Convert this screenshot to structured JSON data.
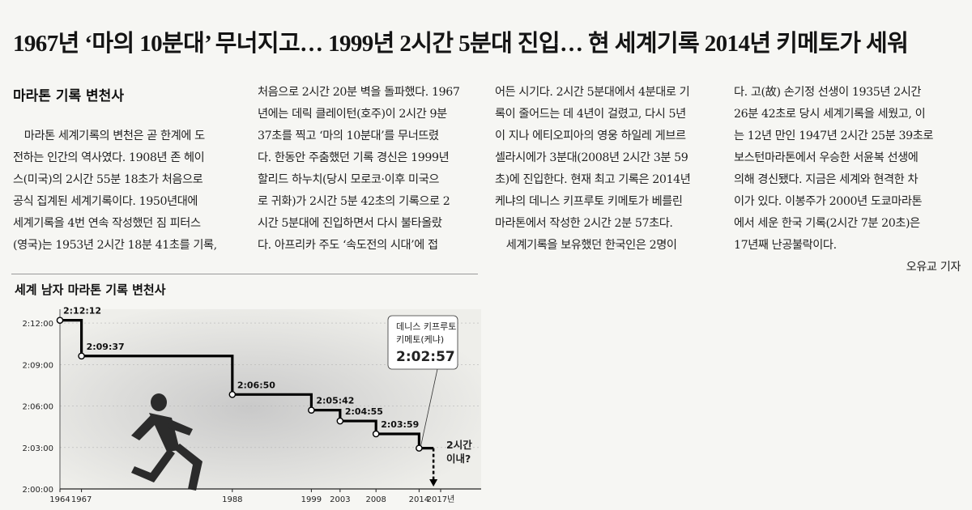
{
  "headline": "1967년 ‘마의 10분대’ 무너지고… 1999년 2시간 5분대 진입… 현 세계기록 2014년 키메토가 세워",
  "section_title": "마라톤 기록 변천사",
  "columns": [
    [
      "　마라톤 세계기록의 변천은 곧 한계에 도",
      "전하는 인간의 역사였다. 1908년 존 헤이",
      "스(미국)의 2시간 55분 18초가 처음으로",
      "공식 집계된 세계기록이다. 1950년대에",
      "세계기록을 4번 연속 작성했던 짐 피터스",
      "(영국)는 1953년 2시간 18분 41초를 기록,"
    ],
    [
      "처음으로 2시간 20분 벽을 돌파했다. 1967",
      "년에는 데릭 클레이턴(호주)이 2시간 9분",
      "37초를 찍고 ‘마의 10분대’를 무너뜨렸",
      "다. 한동안 주춤했던 기록 경신은 1999년",
      "할리드 하누치(당시 모로코·이후 미국으",
      "로 귀화)가 2시간 5분 42초의 기록으로 2",
      "시간 5분대에 진입하면서 다시 불타올랐",
      "다. 아프리카 주도 ‘속도전의 시대’에 접"
    ],
    [
      "어든 시기다. 2시간 5분대에서 4분대로 기",
      "록이 줄어드는 데 4년이 걸렸고, 다시 5년",
      "이 지나 에티오피아의 영웅 하일레 게브르",
      "셀라시에가 3분대(2008년 2시간 3분 59",
      "초)에 진입한다. 현재 최고 기록은 2014년",
      "케냐의 데니스 키프루토 키메토가 베를린",
      "마라톤에서 작성한 2시간 2분 57초다.",
      "　세계기록을 보유했던 한국인은 2명이"
    ],
    [
      "다. 고(故) 손기정 선생이 1935년 2시간",
      "26분 42초로 당시 세계기록을 세웠고, 이",
      "는 12년 만인 1947년 2시간 25분 39초로",
      "보스턴마라톤에서 우승한 서윤복 선생에",
      "의해 경신됐다. 지금은 세계와 현격한 차",
      "이가 있다. 이봉주가 2000년 도쿄마라톤",
      "에서 세운 한국 기록(2시간 7분 20초)은",
      "17년째 난공불락이다."
    ]
  ],
  "byline": "오유교 기자",
  "chart_title": "세계 남자 마라톤 기록 변천사",
  "chart_data": {
    "type": "line",
    "step": true,
    "title": "세계 남자 마라톤 기록 변천사",
    "y_unit": "time (h:mm:ss)",
    "ylim_seconds": [
      7200,
      7980
    ],
    "y_ticks": [
      {
        "label": "2:12:00",
        "seconds": 7920
      },
      {
        "label": "2:09:00",
        "seconds": 7740
      },
      {
        "label": "2:06:00",
        "seconds": 7560
      },
      {
        "label": "2:03:00",
        "seconds": 7380
      },
      {
        "label": "2:00:00",
        "seconds": 7200
      }
    ],
    "x_ticks": [
      "1964",
      "1967",
      "1988",
      "1999",
      "2003",
      "2008",
      "2014",
      "2017년"
    ],
    "x_tick_values": [
      1964,
      1967,
      1988,
      1999,
      2003,
      2008,
      2014,
      2017
    ],
    "xlim": [
      1964,
      2017
    ],
    "records": [
      {
        "year": 1964,
        "label": "2:12:12",
        "seconds": 7932
      },
      {
        "year": 1967,
        "label": "2:09:37",
        "seconds": 7777
      },
      {
        "year": 1988,
        "label": "2:06:50",
        "seconds": 7610
      },
      {
        "year": 1999,
        "label": "2:05:42",
        "seconds": 7542
      },
      {
        "year": 2003,
        "label": "2:04:55",
        "seconds": 7495
      },
      {
        "year": 2008,
        "label": "2:03:59",
        "seconds": 7439
      },
      {
        "year": 2014,
        "label": "2:02:57",
        "seconds": 7377
      }
    ],
    "callout": {
      "line1": "데니스 키프루토",
      "line2": "키메토(케냐)",
      "time": "2:02:57"
    },
    "projection_label": [
      "2시간",
      "이내?"
    ]
  }
}
